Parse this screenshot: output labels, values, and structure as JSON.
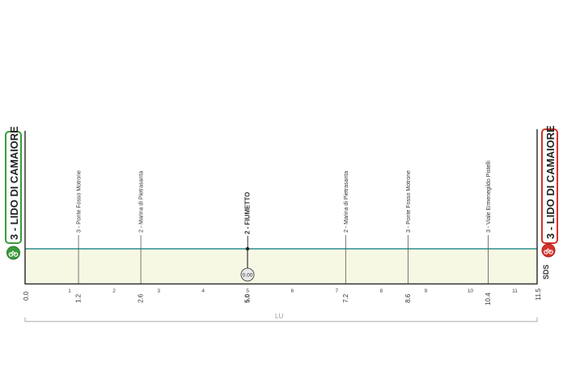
{
  "chart_data": {
    "type": "area",
    "title": "",
    "xlabel": "",
    "ylabel": "",
    "xlim": [
      0,
      11.5
    ],
    "grid": true,
    "colors": {
      "profile_line": "#5fa8a6",
      "profile_fill": "#f6f8e4",
      "start": "#3a9a3a",
      "finish": "#d6312b",
      "axis": "#333333"
    },
    "x_ticks": [
      1,
      2,
      3,
      4,
      5,
      6,
      7,
      8,
      9,
      10,
      11
    ],
    "start": {
      "km": "0.0",
      "label": "3 - LIDO DI CAMAIORE",
      "elevation": 3
    },
    "finish": {
      "km": "11.5",
      "label": "3 - LIDO DI CAMAIORE",
      "elevation": 3
    },
    "waypoints": [
      {
        "km": 1.2,
        "km_label": "1.2",
        "label": "3 - Ponte Fosso Motrone",
        "elevation": 3,
        "bold": false
      },
      {
        "km": 2.6,
        "km_label": "2.6",
        "label": "2 - Marina di Pietrasanta",
        "elevation": 2,
        "bold": false
      },
      {
        "km": 5.0,
        "km_label": "5.0",
        "label": "2 - FIUMETTO",
        "elevation": 2,
        "bold": true
      },
      {
        "km": 7.2,
        "km_label": "7.2",
        "label": "2 - Marina di Pietrasanta",
        "elevation": 2,
        "bold": false
      },
      {
        "km": 8.6,
        "km_label": "8.6",
        "label": "3 - Ponte Fosso Motrone",
        "elevation": 3,
        "bold": false
      },
      {
        "km": 10.4,
        "km_label": "10.4",
        "label": "3 - Viale Ermenegildo Pistelli",
        "elevation": 3,
        "bold": false
      }
    ],
    "intermediate_time": {
      "km": 5.0,
      "icon": "stopwatch-icon",
      "text": "0.00"
    },
    "region_label": "LU",
    "sponsor_label": "SDS",
    "start_icon": "bicycle-icon",
    "finish_icon": "bicycle-icon"
  }
}
